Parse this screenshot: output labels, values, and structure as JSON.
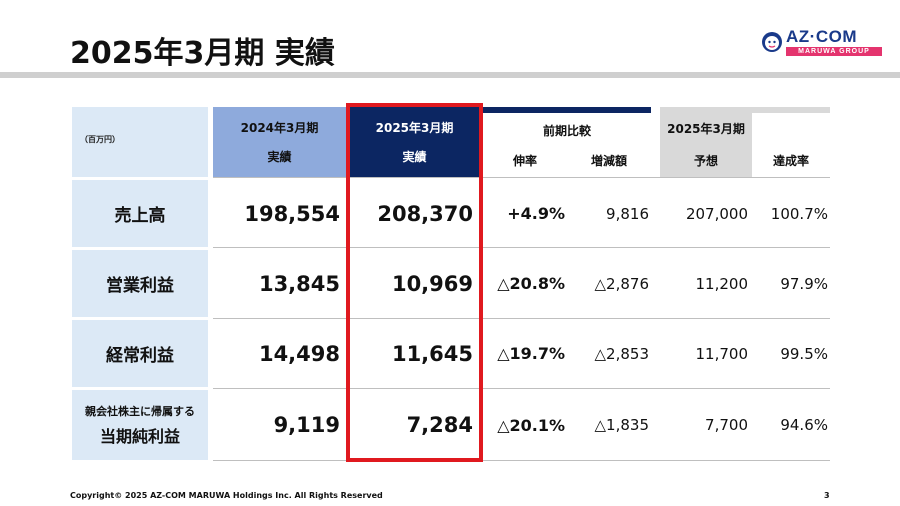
{
  "header": {
    "title": "2025年3月期  実績",
    "logo_brand": "AZ·COM",
    "logo_sub": "MARUWA GROUP"
  },
  "table": {
    "unit": "（百万円）",
    "col_prev_period": "2024年3月期",
    "col_prev_sub": "実績",
    "col_cur_period": "2025年3月期",
    "col_cur_sub": "実績",
    "col_compare": "前期比較",
    "col_growth": "伸率",
    "col_diff": "増減額",
    "col_forecast_period": "2025年3月期",
    "col_forecast": "予想",
    "col_achieve": "達成率",
    "rows": [
      {
        "label": "売上高",
        "prev": "198,554",
        "cur": "208,370",
        "growth": "+4.9%",
        "diff": "9,816",
        "forecast": "207,000",
        "achieve": "100.7%"
      },
      {
        "label": "営業利益",
        "prev": "13,845",
        "cur": "10,969",
        "growth": "△20.8%",
        "diff": "△2,876",
        "forecast": "11,200",
        "achieve": "97.9%"
      },
      {
        "label": "経常利益",
        "prev": "14,498",
        "cur": "11,645",
        "growth": "△19.7%",
        "diff": "△2,853",
        "forecast": "11,700",
        "achieve": "99.5%"
      },
      {
        "label_line1": "親会社株主に帰属する",
        "label_line2": "当期純利益",
        "prev": "9,119",
        "cur": "7,284",
        "growth": "△20.1%",
        "diff": "△1,835",
        "forecast": "7,700",
        "achieve": "94.6%"
      }
    ]
  },
  "footer": {
    "copyright": "Copyright© 2025 AZ-COM MARUWA Holdings Inc. All Rights Reserved",
    "page": "3"
  },
  "colors": {
    "prev_header": "#8eaadc",
    "cur_header": "#0c2662",
    "label_bg": "#dce9f6",
    "highlight": "#e0191f",
    "logo_pink": "#e4346e"
  }
}
